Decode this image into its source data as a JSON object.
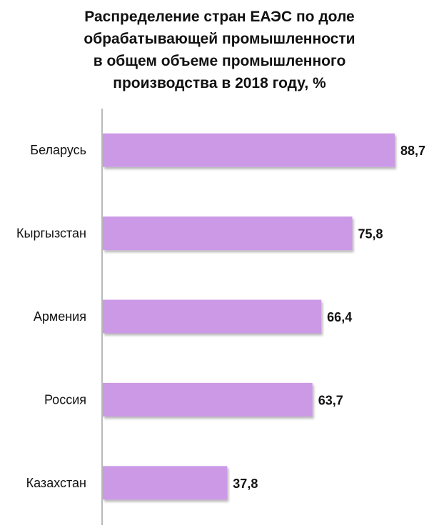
{
  "chart_data": {
    "type": "bar",
    "orientation": "horizontal",
    "title_lines": [
      "Распределение стран ЕАЭС по доле",
      "обрабатывающей промышленности",
      "в общем объеме промышленного",
      "производства в 2018 году, %"
    ],
    "categories": [
      "Беларусь",
      "Кыргызстан",
      "Армения",
      "Россия",
      "Казахстан"
    ],
    "values": [
      88.7,
      75.8,
      66.4,
      63.7,
      37.8
    ],
    "value_labels": [
      "88,7",
      "75,8",
      "66,4",
      "63,7",
      "37,8"
    ],
    "xlim": [
      0,
      90
    ],
    "grid": false,
    "legend": "none",
    "bar_color": "#cc99e6",
    "axis_color": "#8c8c8c"
  }
}
